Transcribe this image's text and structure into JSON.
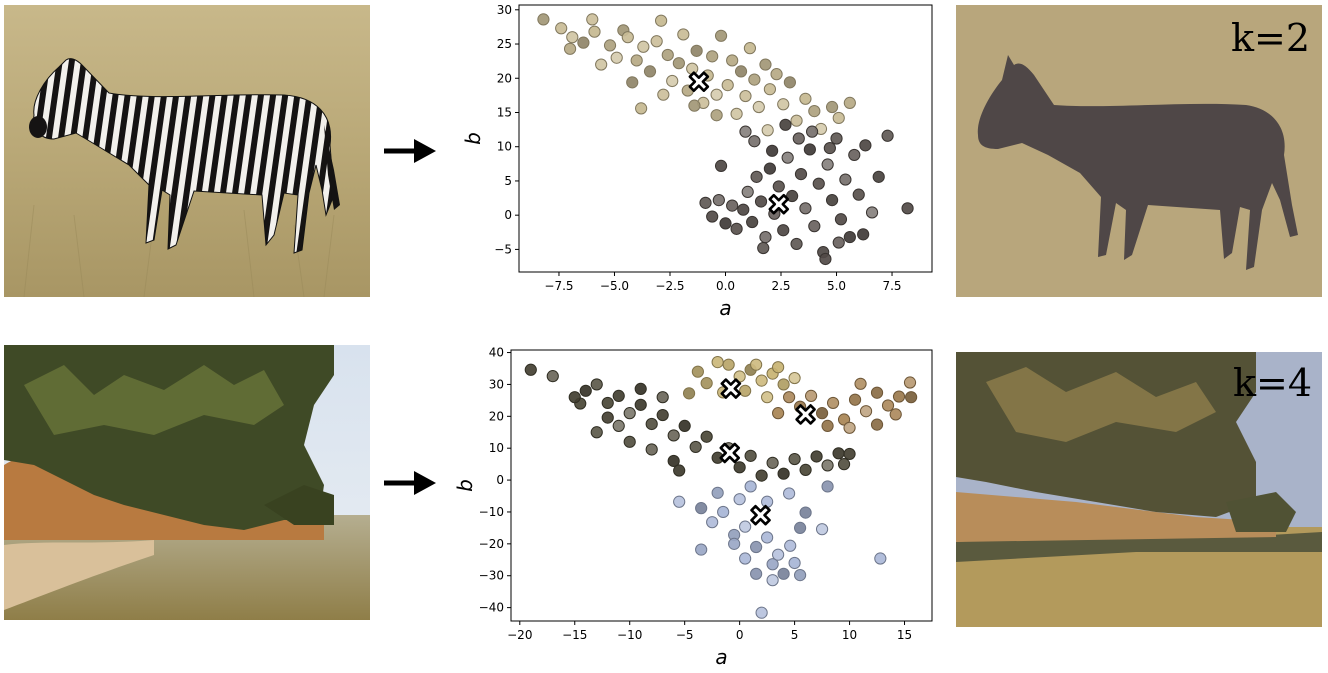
{
  "chart_data": [
    {
      "type": "scatter",
      "title": "",
      "xlabel": "a",
      "ylabel": "b",
      "xlim": [
        -9.3,
        9.3
      ],
      "ylim": [
        -8.3,
        30.7
      ],
      "xticks": [
        -7.5,
        -5.0,
        -2.5,
        0.0,
        2.5,
        5.0,
        7.5
      ],
      "xtick_labels": [
        "−7.5",
        "−5.0",
        "−2.5",
        "0.0",
        "2.5",
        "5.0",
        "7.5"
      ],
      "yticks": [
        -5,
        0,
        5,
        10,
        15,
        20,
        25,
        30
      ],
      "ytick_labels": [
        "−5",
        "0",
        "5",
        "10",
        "15",
        "20",
        "25",
        "30"
      ],
      "grid": false,
      "series": [
        {
          "color": "#c6b890",
          "points": [
            [
              -8.2,
              28.6
            ],
            [
              -7.4,
              27.3
            ],
            [
              -7.0,
              24.3
            ],
            [
              -6.9,
              26.0
            ],
            [
              -6.4,
              25.2
            ],
            [
              -6.0,
              28.6
            ],
            [
              -5.9,
              26.8
            ],
            [
              -5.2,
              24.8
            ],
            [
              -4.9,
              23.0
            ],
            [
              -4.6,
              27.0
            ],
            [
              -4.4,
              26.0
            ],
            [
              -4.0,
              22.6
            ],
            [
              -3.7,
              24.6
            ],
            [
              -3.4,
              21.0
            ],
            [
              -3.1,
              25.4
            ],
            [
              -2.9,
              28.4
            ],
            [
              -2.6,
              23.4
            ],
            [
              -2.4,
              19.6
            ],
            [
              -2.1,
              22.2
            ],
            [
              -1.9,
              26.4
            ],
            [
              -1.7,
              18.2
            ],
            [
              -1.5,
              21.4
            ],
            [
              -1.3,
              24.0
            ],
            [
              -1.0,
              16.4
            ],
            [
              -0.8,
              20.4
            ],
            [
              -0.6,
              23.2
            ],
            [
              -0.4,
              17.6
            ],
            [
              -0.2,
              26.2
            ],
            [
              0.1,
              19.0
            ],
            [
              0.3,
              22.6
            ],
            [
              0.5,
              14.8
            ],
            [
              0.7,
              21.0
            ],
            [
              0.9,
              17.4
            ],
            [
              1.1,
              24.4
            ],
            [
              1.3,
              19.8
            ],
            [
              1.5,
              15.8
            ],
            [
              1.8,
              22.0
            ],
            [
              2.0,
              18.4
            ],
            [
              2.3,
              20.6
            ],
            [
              2.6,
              16.2
            ],
            [
              2.9,
              19.4
            ],
            [
              3.2,
              13.8
            ],
            [
              3.6,
              17.0
            ],
            [
              4.0,
              15.2
            ],
            [
              4.3,
              12.6
            ],
            [
              4.8,
              15.8
            ],
            [
              5.1,
              14.2
            ],
            [
              5.6,
              16.4
            ],
            [
              -5.6,
              22.0
            ],
            [
              -4.2,
              19.4
            ],
            [
              -2.8,
              17.6
            ],
            [
              -3.8,
              15.6
            ],
            [
              -0.4,
              14.6
            ],
            [
              1.9,
              12.4
            ],
            [
              -1.4,
              16.0
            ]
          ]
        },
        {
          "color": "#58504c",
          "points": [
            [
              -0.9,
              1.8
            ],
            [
              -0.6,
              -0.2
            ],
            [
              -0.3,
              2.2
            ],
            [
              0.0,
              -1.2
            ],
            [
              0.3,
              1.4
            ],
            [
              0.5,
              -2.0
            ],
            [
              0.8,
              0.8
            ],
            [
              1.0,
              3.4
            ],
            [
              1.2,
              -1.0
            ],
            [
              1.4,
              5.6
            ],
            [
              1.6,
              2.0
            ],
            [
              1.8,
              -3.2
            ],
            [
              2.0,
              6.8
            ],
            [
              2.2,
              0.2
            ],
            [
              2.4,
              4.2
            ],
            [
              2.6,
              -2.2
            ],
            [
              2.8,
              8.4
            ],
            [
              3.0,
              2.8
            ],
            [
              3.2,
              -4.2
            ],
            [
              3.4,
              6.0
            ],
            [
              3.6,
              1.0
            ],
            [
              3.8,
              9.6
            ],
            [
              4.0,
              -1.6
            ],
            [
              4.2,
              4.6
            ],
            [
              4.4,
              -5.4
            ],
            [
              4.6,
              7.4
            ],
            [
              4.8,
              2.2
            ],
            [
              5.0,
              11.2
            ],
            [
              5.2,
              -0.6
            ],
            [
              5.4,
              5.2
            ],
            [
              5.6,
              -3.2
            ],
            [
              5.8,
              8.8
            ],
            [
              6.0,
              3.0
            ],
            [
              6.3,
              10.2
            ],
            [
              6.6,
              0.4
            ],
            [
              6.9,
              5.6
            ],
            [
              7.3,
              11.6
            ],
            [
              8.2,
              1.0
            ],
            [
              1.3,
              10.8
            ],
            [
              2.1,
              9.4
            ],
            [
              3.3,
              11.2
            ],
            [
              4.7,
              9.8
            ],
            [
              -0.2,
              7.2
            ],
            [
              0.9,
              12.2
            ],
            [
              2.7,
              13.2
            ],
            [
              1.7,
              -4.8
            ],
            [
              4.5,
              -6.4
            ],
            [
              3.9,
              12.2
            ],
            [
              6.2,
              -2.8
            ],
            [
              5.1,
              -4.0
            ]
          ]
        }
      ],
      "centroids": [
        [
          -1.2,
          19.5
        ],
        [
          2.4,
          1.6
        ]
      ]
    },
    {
      "type": "scatter",
      "title": "",
      "xlabel": "a",
      "ylabel": "b",
      "xlim": [
        -20.8,
        17.5
      ],
      "ylim": [
        -44.2,
        40.8
      ],
      "xticks": [
        -20,
        -15,
        -10,
        -5,
        0,
        5,
        10,
        15
      ],
      "xtick_labels": [
        "−20",
        "−15",
        "−10",
        "−5",
        "0",
        "5",
        "10",
        "15"
      ],
      "yticks": [
        -40,
        -30,
        -20,
        -10,
        0,
        10,
        20,
        30,
        40
      ],
      "ytick_labels": [
        "−40",
        "−30",
        "−20",
        "−10",
        "0",
        "10",
        "20",
        "30",
        "40"
      ],
      "grid": false,
      "series": [
        {
          "color": "#c8b372",
          "points": [
            [
              -3.8,
              34.0
            ],
            [
              -2.0,
              37.0
            ],
            [
              -1.0,
              36.2
            ],
            [
              0.0,
              32.5
            ],
            [
              1.0,
              34.6
            ],
            [
              2.0,
              31.2
            ],
            [
              3.0,
              33.4
            ],
            [
              4.0,
              30.0
            ],
            [
              5.0,
              32.0
            ],
            [
              -3.0,
              30.4
            ],
            [
              -1.5,
              27.5
            ],
            [
              0.5,
              28.0
            ],
            [
              2.5,
              26.0
            ],
            [
              -4.6,
              27.2
            ],
            [
              1.5,
              36.2
            ],
            [
              3.5,
              35.4
            ]
          ]
        },
        {
          "color": "#a88454",
          "points": [
            [
              4.5,
              26.0
            ],
            [
              5.5,
              23.0
            ],
            [
              6.5,
              26.4
            ],
            [
              7.5,
              21.0
            ],
            [
              8.5,
              24.2
            ],
            [
              9.5,
              19.0
            ],
            [
              10.5,
              25.2
            ],
            [
              11.5,
              21.6
            ],
            [
              12.5,
              27.4
            ],
            [
              13.5,
              23.4
            ],
            [
              14.5,
              26.2
            ],
            [
              15.5,
              30.6
            ],
            [
              15.6,
              26.0
            ],
            [
              11.0,
              30.2
            ],
            [
              3.5,
              21.0
            ],
            [
              8.0,
              17.0
            ],
            [
              10.0,
              16.4
            ],
            [
              12.5,
              17.4
            ],
            [
              14.2,
              20.6
            ]
          ]
        },
        {
          "color": "#4a4636",
          "points": [
            [
              -19.0,
              34.6
            ],
            [
              -17.0,
              32.6
            ],
            [
              -14.0,
              28.0
            ],
            [
              -13.0,
              30.0
            ],
            [
              -12.0,
              24.2
            ],
            [
              -11.0,
              26.4
            ],
            [
              -10.0,
              21.0
            ],
            [
              -9.0,
              23.6
            ],
            [
              -8.0,
              17.6
            ],
            [
              -7.0,
              20.4
            ],
            [
              -6.0,
              14.0
            ],
            [
              -5.0,
              17.0
            ],
            [
              -4.0,
              10.4
            ],
            [
              -3.0,
              13.6
            ],
            [
              -2.0,
              7.0
            ],
            [
              -1.0,
              10.0
            ],
            [
              0.0,
              4.0
            ],
            [
              1.0,
              7.6
            ],
            [
              2.0,
              1.4
            ],
            [
              3.0,
              5.4
            ],
            [
              4.0,
              2.0
            ],
            [
              5.0,
              6.6
            ],
            [
              6.0,
              3.2
            ],
            [
              7.0,
              7.4
            ],
            [
              8.0,
              4.6
            ],
            [
              9.0,
              8.4
            ],
            [
              -10.0,
              12.0
            ],
            [
              -12.0,
              19.6
            ],
            [
              -8.0,
              9.6
            ],
            [
              -6.0,
              6.0
            ],
            [
              -13.0,
              15.0
            ],
            [
              -14.5,
              24.0
            ],
            [
              -15.0,
              26.0
            ],
            [
              -11.0,
              17.0
            ],
            [
              -5.5,
              3.0
            ],
            [
              9.5,
              5.0
            ],
            [
              10.0,
              8.2
            ],
            [
              -7.0,
              26.0
            ],
            [
              -9.0,
              28.6
            ]
          ]
        },
        {
          "color": "#a7b5d6",
          "points": [
            [
              -5.5,
              -6.8
            ],
            [
              -3.5,
              -8.8
            ],
            [
              -2.5,
              -13.2
            ],
            [
              -1.5,
              -10.0
            ],
            [
              -0.5,
              -17.2
            ],
            [
              0.5,
              -14.6
            ],
            [
              1.5,
              -21.0
            ],
            [
              2.5,
              -18.0
            ],
            [
              3.0,
              -26.4
            ],
            [
              3.5,
              -23.4
            ],
            [
              4.0,
              -29.4
            ],
            [
              4.6,
              -20.6
            ],
            [
              5.0,
              -26.0
            ],
            [
              5.5,
              -29.8
            ],
            [
              3.0,
              -31.4
            ],
            [
              1.5,
              -29.4
            ],
            [
              0.5,
              -24.6
            ],
            [
              -0.5,
              -20.0
            ],
            [
              2.0,
              -41.6
            ],
            [
              6.0,
              -10.2
            ],
            [
              4.5,
              -4.2
            ],
            [
              1.0,
              -2.0
            ],
            [
              -2.0,
              -4.0
            ],
            [
              7.5,
              -15.4
            ],
            [
              8.0,
              -2.0
            ],
            [
              12.8,
              -24.6
            ],
            [
              -3.5,
              -21.8
            ],
            [
              0.0,
              -6.0
            ],
            [
              5.5,
              -15.0
            ],
            [
              2.5,
              -6.8
            ]
          ]
        }
      ],
      "centroids": [
        [
          -0.8,
          28.7
        ],
        [
          6.0,
          20.6
        ],
        [
          -0.9,
          8.5
        ],
        [
          1.9,
          -11.0
        ]
      ]
    }
  ],
  "annotations": {
    "top_k_label": "k=2",
    "bottom_k_label": "k=4"
  }
}
